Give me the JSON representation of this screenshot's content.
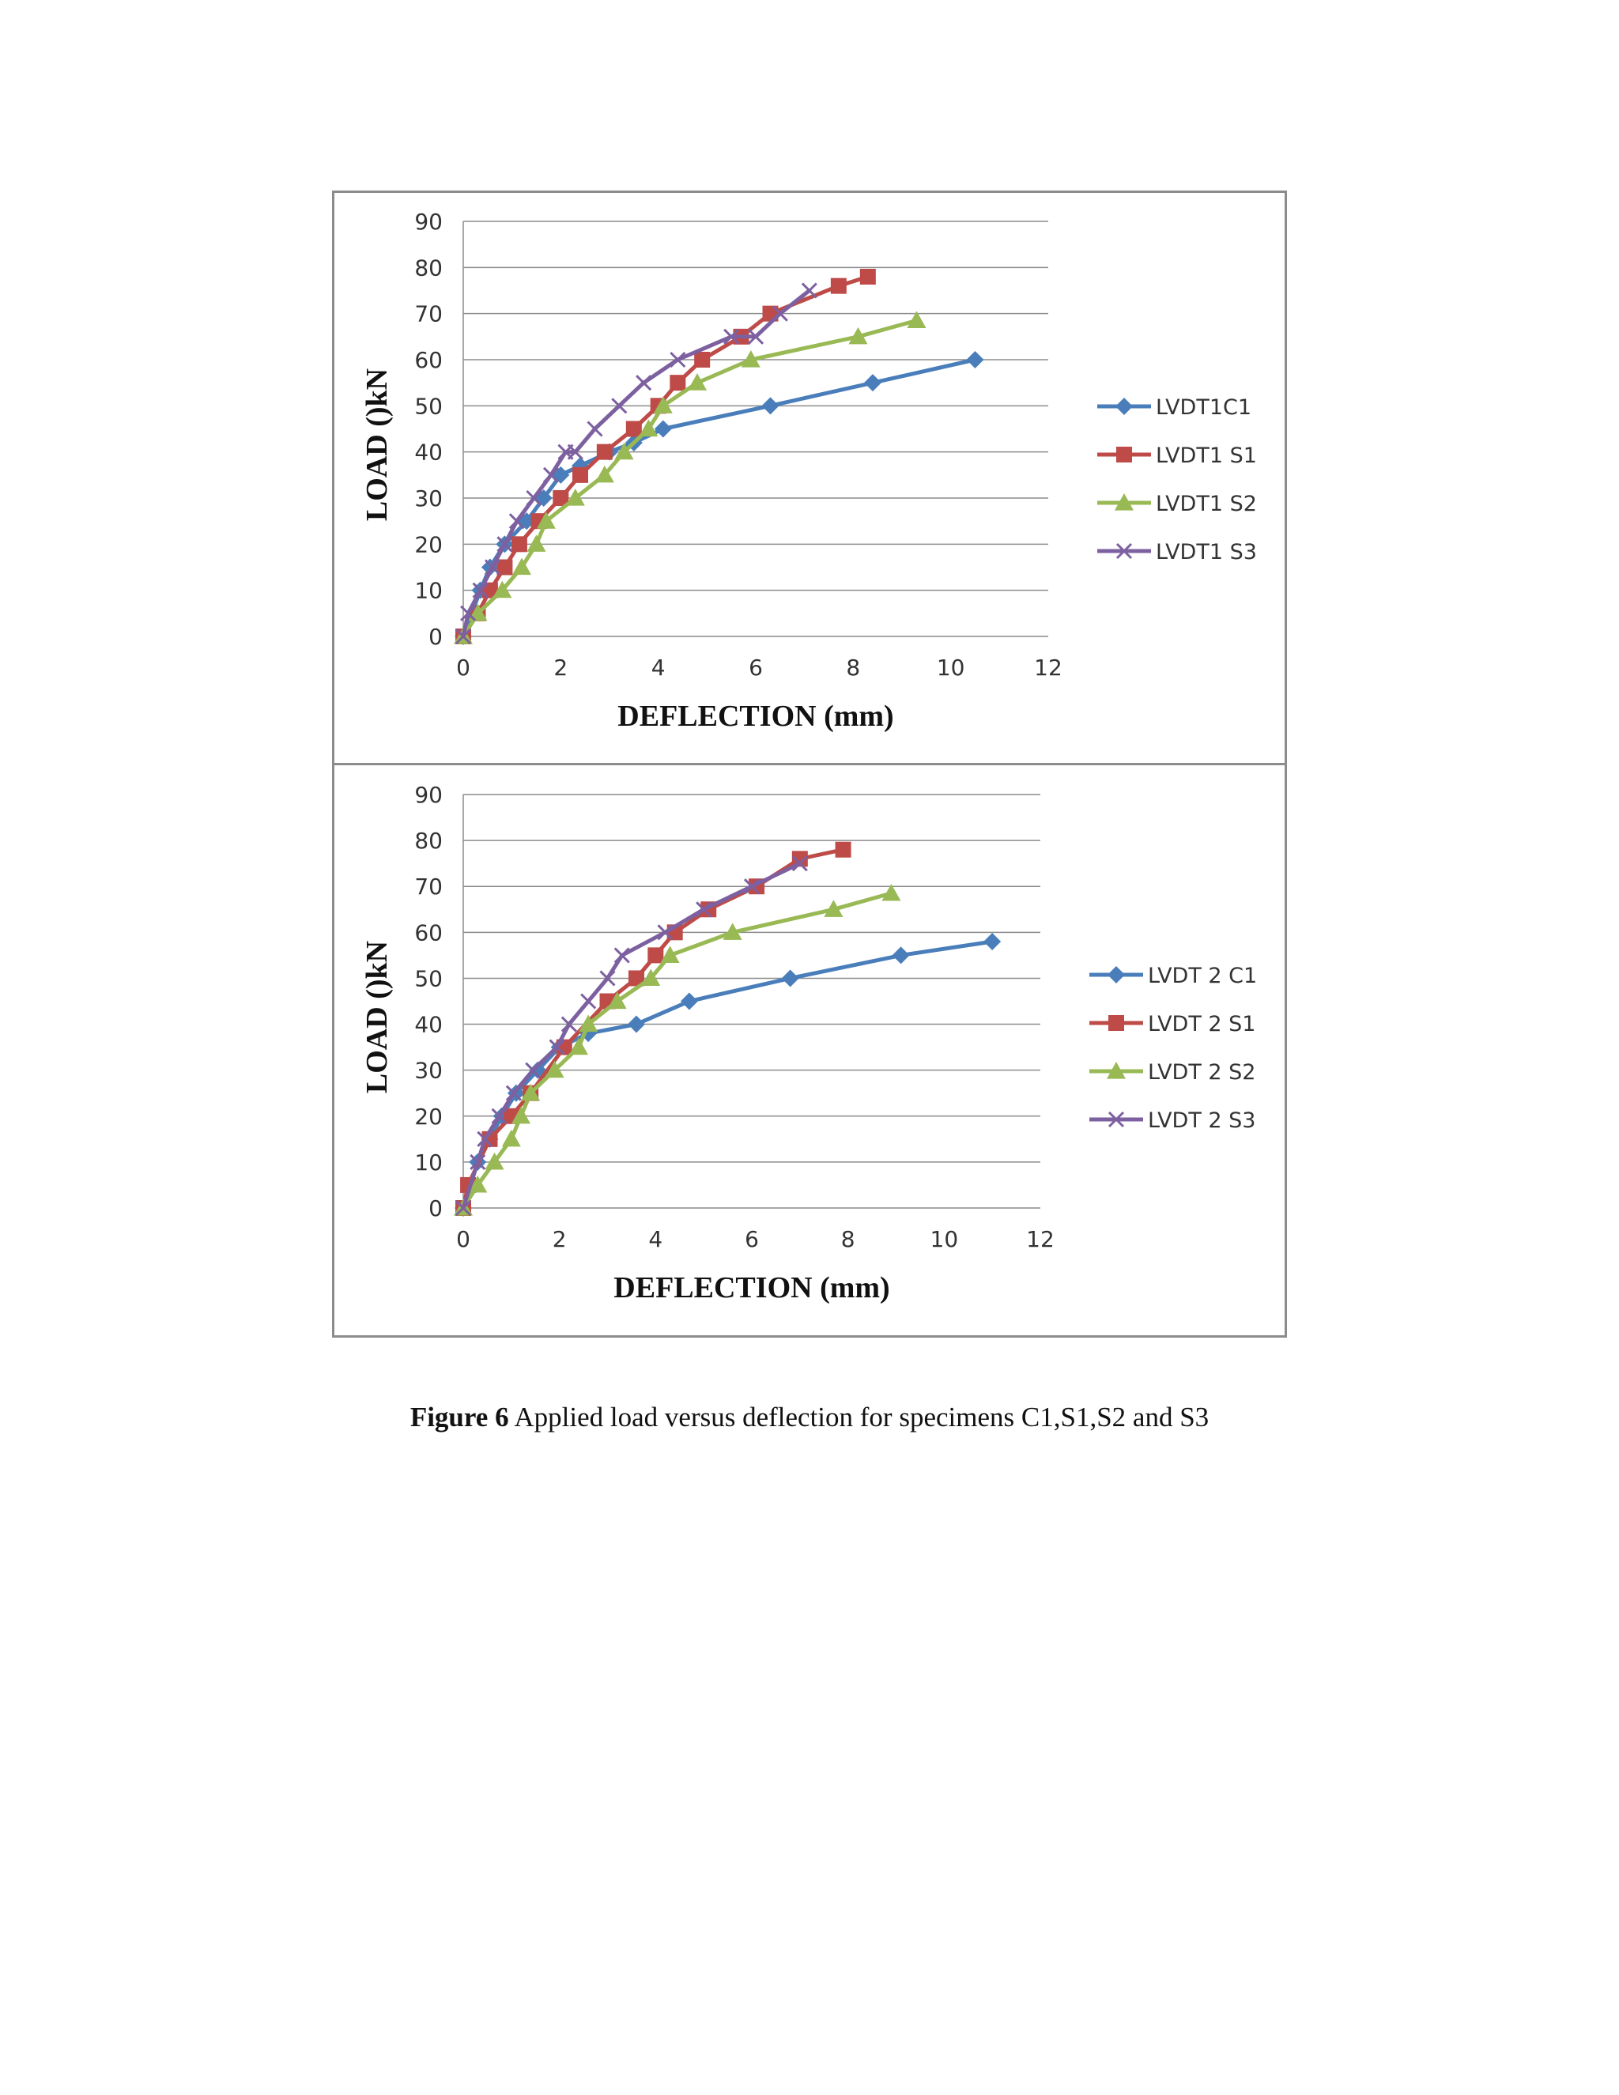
{
  "caption": {
    "label": "Figure 6",
    "text": " Applied load versus deflection for specimens C1,S1,S2 and S3"
  },
  "colors": {
    "C1": "#4a7ebb",
    "S1": "#be4b48",
    "S2": "#98b954",
    "S3": "#7d60a0",
    "grid": "#8c8c8c",
    "border": "#8c8c8c"
  },
  "chart_data": [
    {
      "type": "line",
      "xlabel": "DEFLECTION (mm)",
      "ylabel": "LOAD ()kN",
      "xlim": [
        0,
        12
      ],
      "ylim": [
        0,
        90
      ],
      "xticks": [
        0,
        2,
        4,
        6,
        8,
        10,
        12
      ],
      "yticks": [
        0,
        10,
        20,
        30,
        40,
        50,
        60,
        70,
        80,
        90
      ],
      "grid": "horizontal",
      "legend": "right",
      "series": [
        {
          "name": "LVDT1C1",
          "marker": "diamond",
          "color": "#4a7ebb",
          "x": [
            0,
            0.35,
            0.55,
            0.85,
            1.3,
            1.65,
            2.0,
            2.4,
            3.0,
            3.5,
            4.1,
            6.3,
            8.4,
            10.5
          ],
          "y": [
            0,
            10,
            15,
            20,
            25,
            30,
            35,
            37,
            40,
            42,
            45,
            50,
            55,
            60
          ]
        },
        {
          "name": "LVDT1 S1",
          "marker": "square",
          "color": "#be4b48",
          "x": [
            0,
            0.3,
            0.55,
            0.85,
            1.15,
            1.55,
            2.0,
            2.4,
            2.9,
            3.5,
            4.0,
            4.4,
            4.9,
            5.7,
            6.3,
            7.7,
            8.3
          ],
          "y": [
            0,
            5,
            10,
            15,
            20,
            25,
            30,
            35,
            40,
            45,
            50,
            55,
            60,
            65,
            70,
            76,
            78
          ]
        },
        {
          "name": "LVDT1 S2",
          "marker": "triangle",
          "color": "#98b954",
          "x": [
            0,
            0.3,
            0.8,
            1.2,
            1.5,
            1.7,
            2.3,
            2.9,
            3.3,
            3.8,
            4.1,
            4.8,
            5.9,
            8.1,
            9.3
          ],
          "y": [
            0,
            5,
            10,
            15,
            20,
            25,
            30,
            35,
            40,
            45,
            50,
            55,
            60,
            65,
            68.5
          ]
        },
        {
          "name": "LVDT1 S3",
          "marker": "x",
          "color": "#7d60a0",
          "x": [
            0,
            0.1,
            0.35,
            0.6,
            0.85,
            1.1,
            1.45,
            1.8,
            2.1,
            2.3,
            2.7,
            3.2,
            3.7,
            4.4,
            5.5,
            6.0,
            6.5,
            7.1
          ],
          "y": [
            0,
            5,
            10,
            15,
            20,
            25,
            30,
            35,
            40,
            40,
            45,
            50,
            55,
            60,
            65,
            65,
            70,
            75
          ]
        }
      ]
    },
    {
      "type": "line",
      "xlabel": "DEFLECTION (mm)",
      "ylabel": "LOAD ()kN",
      "xlim": [
        0,
        12
      ],
      "ylim": [
        0,
        90
      ],
      "xticks": [
        0,
        2,
        4,
        6,
        8,
        10,
        12
      ],
      "yticks": [
        0,
        10,
        20,
        30,
        40,
        50,
        60,
        70,
        80,
        90
      ],
      "grid": "horizontal",
      "legend": "right",
      "series": [
        {
          "name": "LVDT 2 C1",
          "marker": "diamond",
          "color": "#4a7ebb",
          "x": [
            0,
            0.3,
            0.55,
            0.8,
            1.1,
            1.55,
            2.0,
            2.6,
            3.6,
            4.7,
            6.8,
            9.1,
            11.0
          ],
          "y": [
            0,
            10,
            15,
            20,
            25,
            30,
            35,
            38,
            40,
            45,
            50,
            55,
            58
          ]
        },
        {
          "name": "LVDT 2 S1",
          "marker": "square",
          "color": "#be4b48",
          "x": [
            0,
            0.1,
            0.55,
            1.0,
            1.4,
            2.1,
            3.0,
            3.6,
            4.0,
            4.4,
            5.1,
            6.1,
            7.0,
            7.9
          ],
          "y": [
            0,
            5,
            15,
            20,
            25,
            35,
            45,
            50,
            55,
            60,
            65,
            70,
            76,
            78
          ]
        },
        {
          "name": "LVDT 2 S2",
          "marker": "triangle",
          "color": "#98b954",
          "x": [
            0,
            0.3,
            0.65,
            1.0,
            1.2,
            1.4,
            1.9,
            2.4,
            2.6,
            3.2,
            3.9,
            4.3,
            5.6,
            7.7,
            8.9
          ],
          "y": [
            0,
            5,
            10,
            15,
            20,
            25,
            30,
            35,
            40,
            45,
            50,
            55,
            60,
            65,
            68.5
          ]
        },
        {
          "name": "LVDT 2 S3",
          "marker": "x",
          "color": "#7d60a0",
          "x": [
            0,
            0.3,
            0.45,
            0.75,
            1.05,
            1.45,
            1.95,
            2.2,
            2.6,
            3.0,
            3.3,
            4.2,
            5.0,
            6.0,
            7.0
          ],
          "y": [
            0,
            10,
            15,
            20,
            25,
            30,
            35,
            40,
            45,
            50,
            55,
            60,
            65,
            70,
            75
          ]
        }
      ]
    }
  ]
}
